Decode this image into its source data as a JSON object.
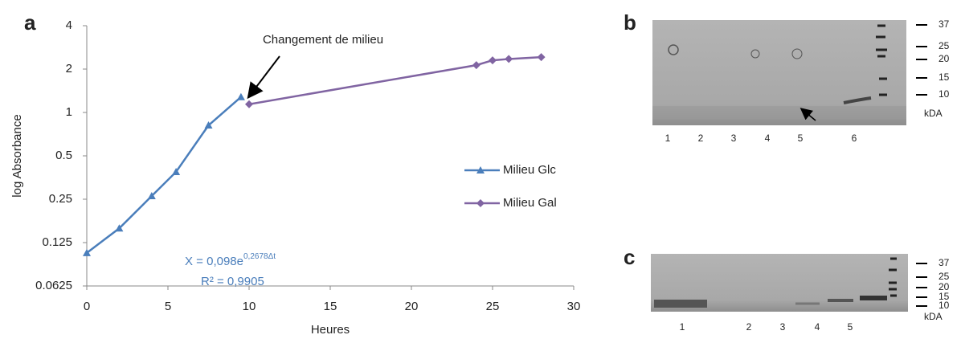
{
  "chart_data": {
    "type": "line",
    "log_y": true,
    "y_label": "log Absorbance",
    "x_label": "Heures",
    "xlim": [
      0,
      30
    ],
    "xticks": [
      0,
      5,
      10,
      15,
      20,
      25,
      30
    ],
    "ylim": [
      0.0625,
      4
    ],
    "yticks": [
      0.0625,
      0.125,
      0.25,
      0.5,
      1,
      2,
      4
    ],
    "legend": "right",
    "series": [
      {
        "name": "Milieu Glc",
        "color": "#4a7ebb",
        "marker": "triangle",
        "x": [
          0,
          2,
          4,
          5.5,
          7.5,
          9.5
        ],
        "values": [
          0.106,
          0.157,
          0.263,
          0.387,
          0.814,
          1.28
        ]
      },
      {
        "name": "Milieu Gal",
        "color": "#8064a2",
        "marker": "diamond",
        "x": [
          10,
          24,
          25,
          26,
          28
        ],
        "values": [
          1.14,
          2.13,
          2.3,
          2.35,
          2.42
        ]
      }
    ],
    "annotation": "Changement de milieu",
    "equation": "X = 0,098e",
    "equation_exponent": "0,2678Δt",
    "r_squared": "R² = 0,9905",
    "panel_label": "a"
  },
  "gel_b": {
    "panel_label": "b",
    "lanes": [
      "1",
      "2",
      "3",
      "4",
      "5",
      "6"
    ],
    "markers": [
      "37",
      "25",
      "20",
      "15",
      "10"
    ],
    "unit": "kDA"
  },
  "gel_c": {
    "panel_label": "c",
    "lanes": [
      "1",
      "2",
      "3",
      "4",
      "5"
    ],
    "markers": [
      "37",
      "25",
      "20",
      "15",
      "10"
    ],
    "unit": "kDA"
  }
}
